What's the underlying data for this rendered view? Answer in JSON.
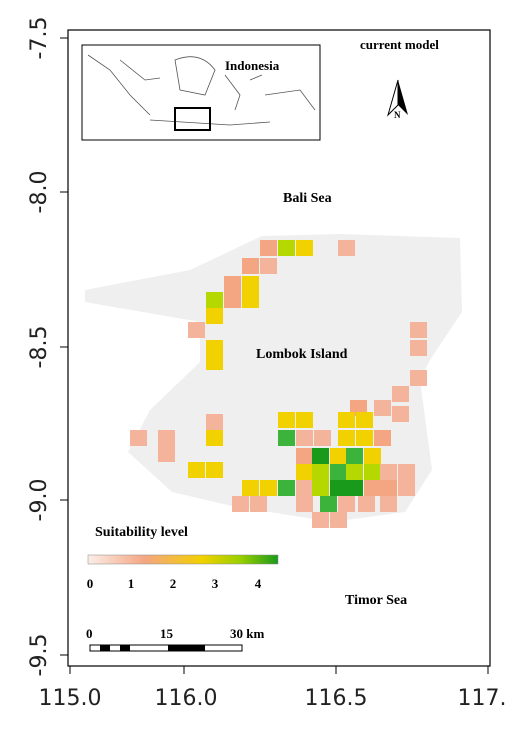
{
  "axes": {
    "x_ticks": [
      "115.0",
      "116.0",
      "116.5",
      "117."
    ],
    "y_ticks": [
      "-7.5",
      "-8.0",
      "-8.5",
      "-9.0",
      "-9.5"
    ]
  },
  "annotations": {
    "model": "current model",
    "north_sea": "Bali Sea",
    "island": "Lombok Island",
    "south_sea": "Timor Sea"
  },
  "inset": {
    "label": "Indonesia"
  },
  "north_label": "N",
  "legend": {
    "title": "Suitability level",
    "ticks": [
      "0",
      "1",
      "2",
      "3",
      "4"
    ]
  },
  "scale_bar": {
    "labels": [
      "0",
      "15",
      "30 km"
    ]
  }
}
